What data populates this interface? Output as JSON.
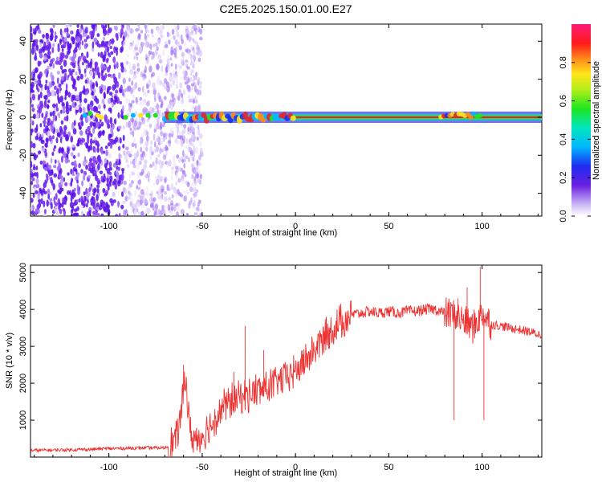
{
  "title": "C2E5.2025.150.01.00.E27",
  "chart_data": [
    {
      "type": "heatmap",
      "xlabel": "Height of straight line (km)",
      "ylabel": "Frequency (Hz)",
      "xlim": [
        -142,
        132
      ],
      "ylim": [
        -52,
        49
      ],
      "xticks": [
        -100,
        -50,
        0,
        50,
        100
      ],
      "yticks": [
        -40,
        -20,
        0,
        20,
        40
      ],
      "colorbar": {
        "label": "Normalized spectral amplitude",
        "range": [
          0,
          1
        ],
        "ticks": [
          "0.0",
          "0.2",
          "0.4",
          "0.6",
          "0.8"
        ]
      },
      "ridge": {
        "frequency": 0,
        "onset_height": -70
      },
      "noise_region": {
        "from_height": -142,
        "to_height": -70
      },
      "colors": {
        "ridge": "#e8242a",
        "noise": "#6a1fe0",
        "band": "#2bdf4a"
      }
    },
    {
      "type": "line",
      "xlabel": "Height of straight line (km)",
      "ylabel": "SNR (10 * v/v)",
      "xlim": [
        -142,
        132
      ],
      "ylim": [
        0,
        5200
      ],
      "xticks": [
        -100,
        -50,
        0,
        50,
        100
      ],
      "yticks": [
        1000,
        2000,
        3000,
        4000,
        5000
      ],
      "color": "#ee3333",
      "series": [
        {
          "x": [
            -142,
            -130,
            -120,
            -110,
            -100,
            -90,
            -80,
            -70,
            -67,
            -64,
            -61,
            -59,
            -57,
            -55,
            -50,
            -45,
            -40,
            -35,
            -30,
            -25,
            -20,
            -15,
            -10,
            -5,
            0,
            5,
            10,
            15,
            20,
            25,
            30,
            35,
            40,
            45,
            50,
            55,
            60,
            65,
            70,
            75,
            80,
            85,
            90,
            95,
            100,
            105,
            110,
            115,
            120,
            125,
            132
          ],
          "y": [
            180,
            190,
            200,
            210,
            230,
            240,
            250,
            250,
            320,
            500,
            1200,
            2300,
            900,
            450,
            600,
            900,
            1300,
            1500,
            1600,
            1700,
            1800,
            1900,
            2000,
            2200,
            2300,
            2600,
            2900,
            3200,
            3450,
            3700,
            3850,
            3900,
            3950,
            3900,
            3950,
            3900,
            3950,
            3950,
            4000,
            4000,
            3900,
            3850,
            3700,
            3500,
            3900,
            3600,
            3550,
            3500,
            3450,
            3400,
            3300
          ],
          "spikes": [
            [
              -60,
              2500
            ],
            [
              -27,
              3550
            ],
            [
              -17,
              2900
            ],
            [
              -33,
              2300
            ],
            [
              87,
              4300
            ],
            [
              92,
              4600
            ],
            [
              94,
              3800
            ],
            [
              99,
              5150
            ],
            [
              85,
              1000
            ],
            [
              101,
              1000
            ]
          ]
        }
      ]
    }
  ]
}
